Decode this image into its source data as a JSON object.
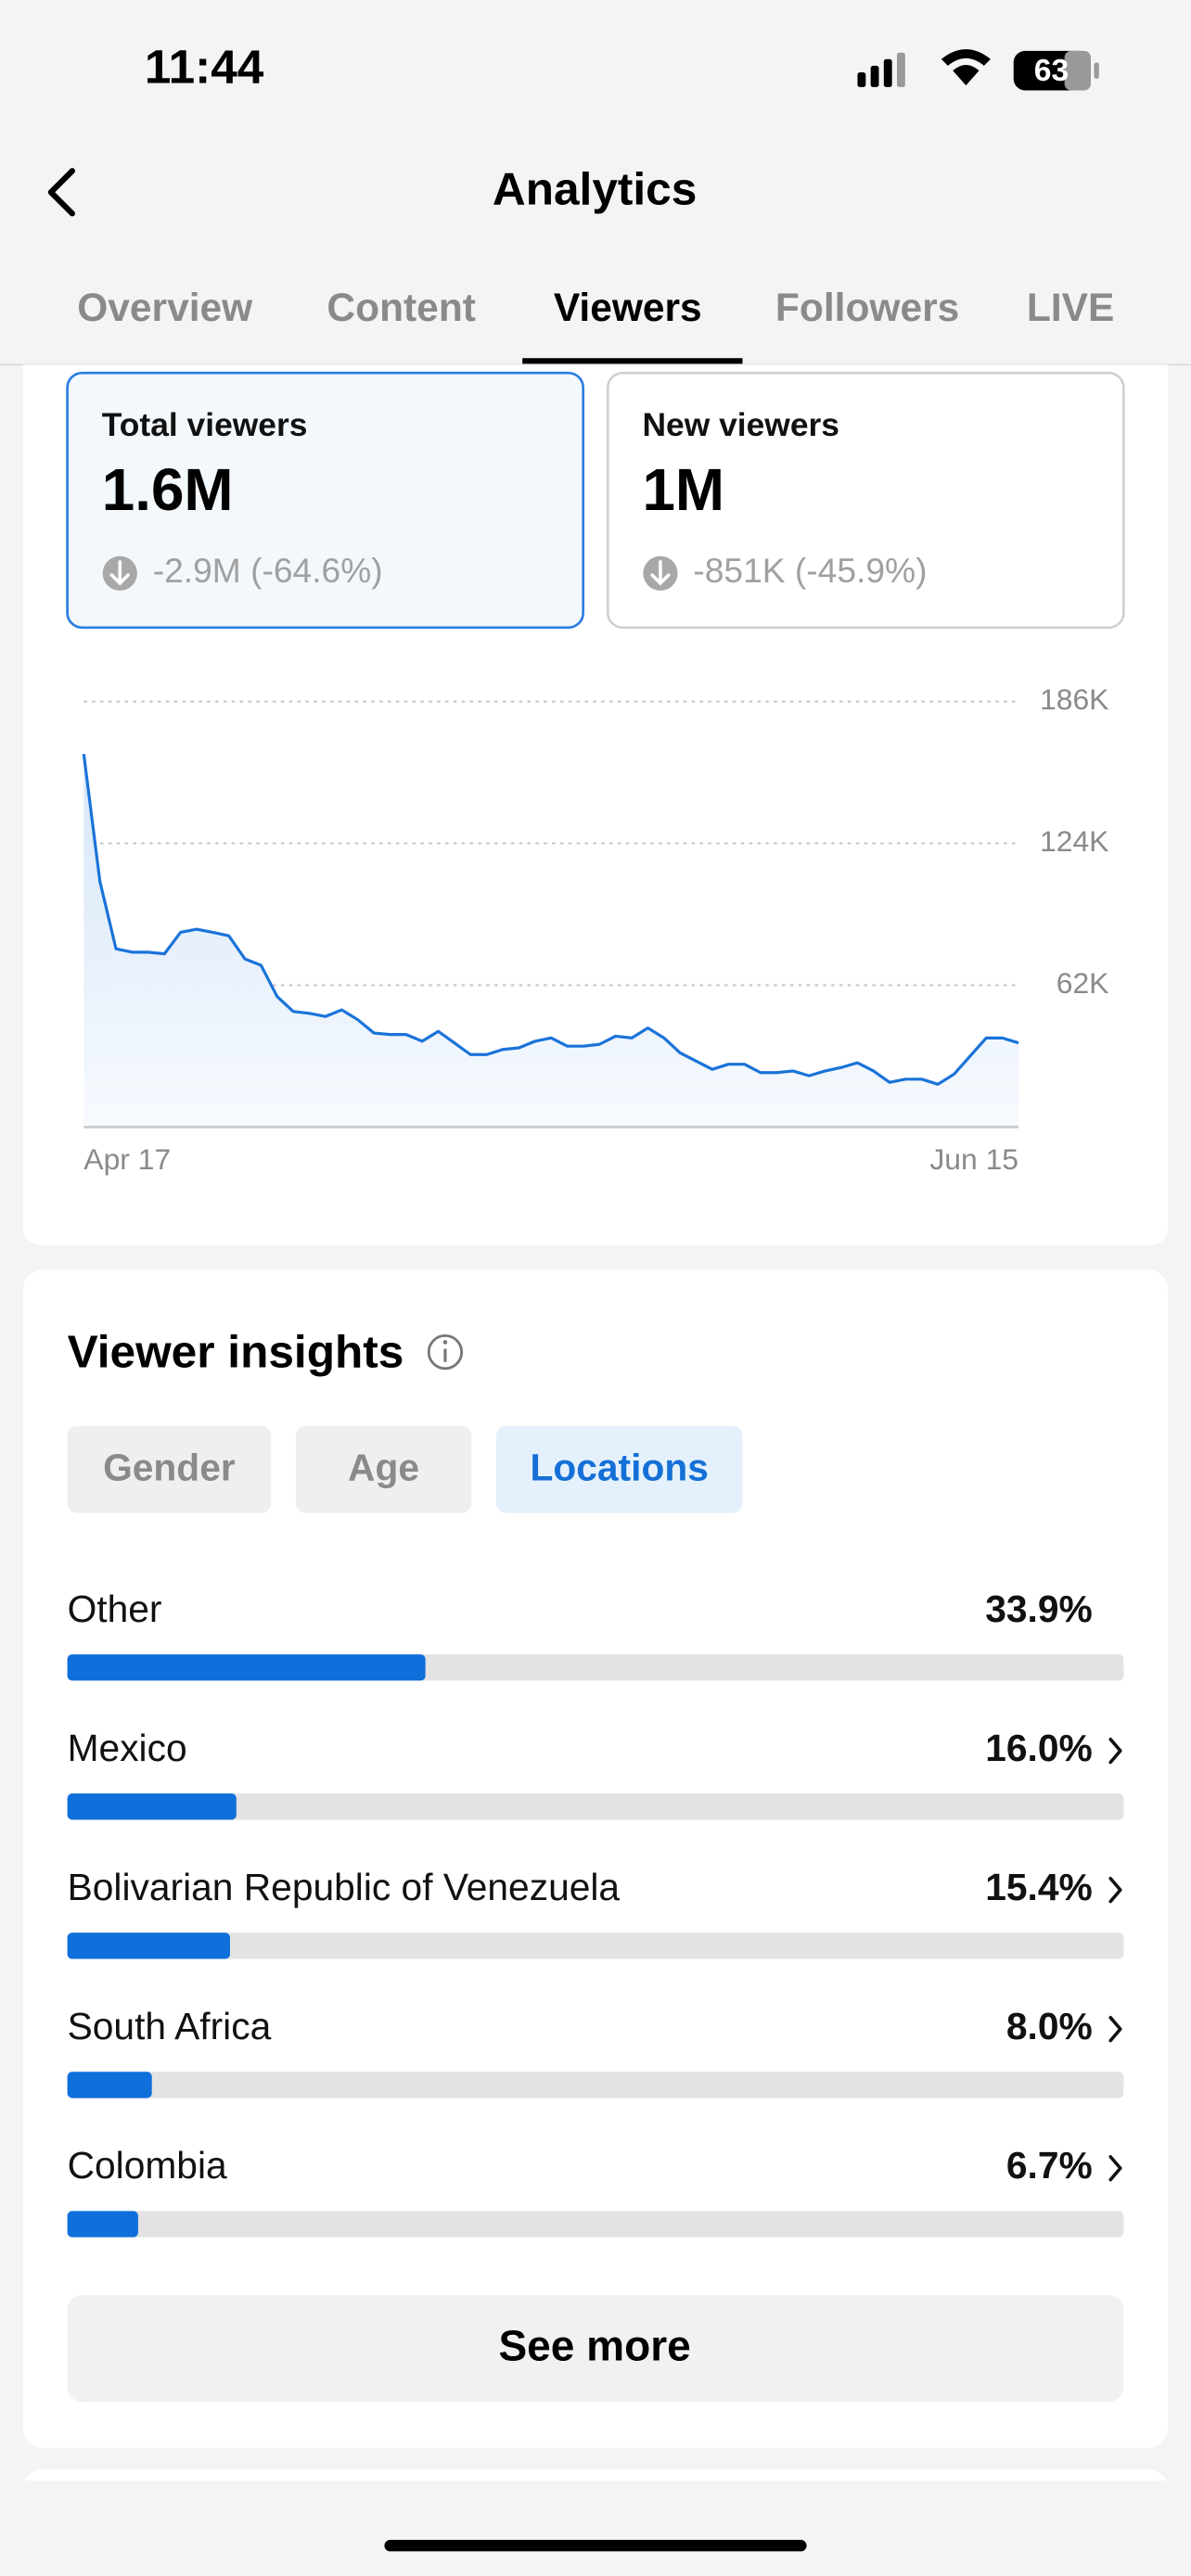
{
  "status": {
    "time": "11:44",
    "battery": "63"
  },
  "header": {
    "title": "Analytics"
  },
  "tabs": [
    "Overview",
    "Content",
    "Viewers",
    "Followers",
    "LIVE"
  ],
  "cards": [
    {
      "label": "Total viewers",
      "value": "1.6M",
      "change": "-2.9M (-64.6%)"
    },
    {
      "label": "New viewers",
      "value": "1M",
      "change": "-851K (-45.9%)"
    }
  ],
  "insights": {
    "title": "Viewer insights",
    "filters": [
      "Gender",
      "Age",
      "Locations"
    ],
    "button": "See more"
  },
  "chart_data": [
    {
      "type": "line",
      "color": "#1a73d9",
      "categories": [
        "Apr 17",
        null,
        null,
        null,
        null,
        null,
        null,
        null,
        null,
        null,
        null,
        null,
        null,
        null,
        null,
        null,
        null,
        null,
        null,
        null,
        null,
        null,
        null,
        null,
        null,
        null,
        null,
        null,
        null,
        null,
        null,
        null,
        null,
        null,
        null,
        null,
        null,
        null,
        null,
        null,
        null,
        null,
        null,
        null,
        null,
        null,
        null,
        null,
        null,
        null,
        null,
        null,
        null,
        null,
        null,
        null,
        null,
        null,
        "Jun 15"
      ],
      "values": [
        163000,
        107400,
        77900,
        76400,
        76400,
        75700,
        85100,
        86500,
        85100,
        83600,
        73500,
        70700,
        57000,
        50500,
        49700,
        48300,
        51200,
        46900,
        41100,
        40400,
        40400,
        37500,
        41800,
        36800,
        31700,
        31700,
        33900,
        34600,
        37500,
        38900,
        35300,
        35300,
        36100,
        39700,
        38900,
        43300,
        38900,
        32400,
        28800,
        25200,
        27400,
        27400,
        23800,
        23800,
        24500,
        22400,
        24500,
        26000,
        28100,
        24500,
        19500,
        20900,
        20900,
        18700,
        23100,
        31000,
        38900,
        38900,
        36800
      ],
      "ylim": [
        0,
        186000
      ],
      "yticks": [
        {
          "value": 62000,
          "label": "62K"
        },
        {
          "value": 124000,
          "label": "124K"
        },
        {
          "value": 186000,
          "label": "186K"
        }
      ],
      "grid": true
    },
    {
      "type": "bar",
      "color": "#0f6fdb",
      "categories": [
        "Other",
        "Mexico",
        "Bolivarian Republic of Venezuela",
        "South Africa",
        "Colombia"
      ],
      "values": [
        33.9,
        16.0,
        15.4,
        8.0,
        6.7
      ],
      "value_labels": [
        "33.9%",
        "16.0%",
        "15.4%",
        "8.0%",
        "6.7%"
      ],
      "xlim": [
        0,
        100
      ]
    }
  ]
}
